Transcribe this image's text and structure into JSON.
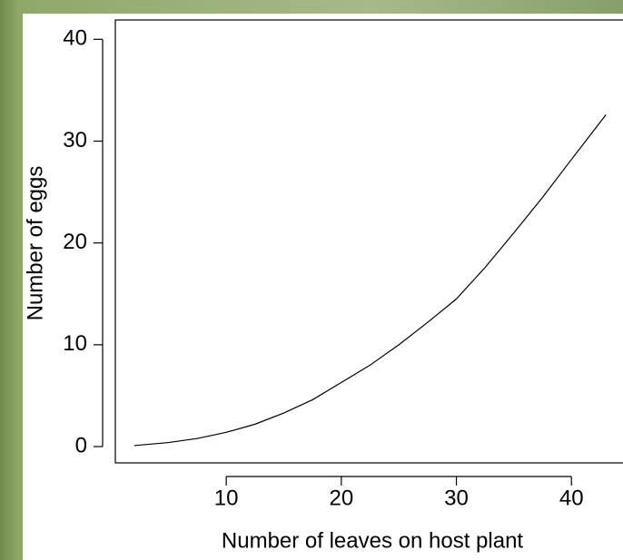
{
  "chart_data": {
    "type": "line",
    "x_label": "Number of leaves on host plant",
    "y_label": "Number of eggs",
    "x": [
      2,
      5,
      7.5,
      10,
      12.5,
      15,
      17.5,
      20,
      22.5,
      25,
      27.5,
      30,
      32.5,
      35,
      37.5,
      40,
      43
    ],
    "series": [
      {
        "color": "#000000",
        "values": [
          0.1,
          0.4,
          0.8,
          1.4,
          2.2,
          3.3,
          4.6,
          6.3,
          8,
          10,
          12.2,
          14.5,
          17.6,
          21,
          24.5,
          28.2,
          32.6
        ]
      }
    ],
    "xlim": [
      0.36,
      44.64
    ],
    "ylim": [
      -1.6,
      41.9
    ],
    "xticks": [
      10,
      20,
      30,
      40
    ],
    "yticks": [
      0,
      10,
      20,
      30,
      40
    ]
  }
}
